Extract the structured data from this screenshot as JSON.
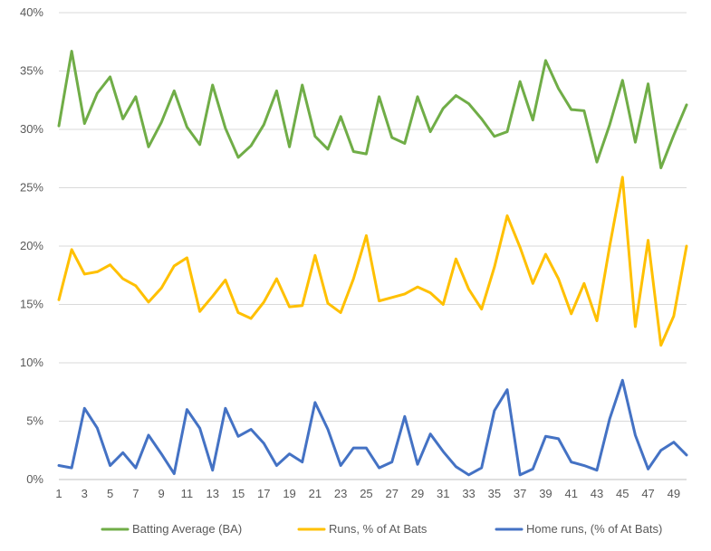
{
  "chart_data": {
    "type": "line",
    "title": "",
    "xlabel": "",
    "ylabel": "",
    "ylim": [
      0,
      0.4
    ],
    "y_ticks": [
      "0%",
      "5%",
      "10%",
      "15%",
      "20%",
      "25%",
      "30%",
      "35%",
      "40%"
    ],
    "x_ticks_shown": [
      1,
      3,
      5,
      7,
      9,
      11,
      13,
      15,
      17,
      19,
      21,
      23,
      25,
      27,
      29,
      31,
      33,
      35,
      37,
      39,
      41,
      43,
      45,
      47,
      49
    ],
    "grid": "horizontal",
    "legend": "bottom",
    "x": [
      1,
      2,
      3,
      4,
      5,
      6,
      7,
      8,
      9,
      10,
      11,
      12,
      13,
      14,
      15,
      16,
      17,
      18,
      19,
      20,
      21,
      22,
      23,
      24,
      25,
      26,
      27,
      28,
      29,
      30,
      31,
      32,
      33,
      34,
      35,
      36,
      37,
      38,
      39,
      40,
      41,
      42,
      43,
      44,
      45,
      46,
      47,
      48,
      49,
      50
    ],
    "series": [
      {
        "name": "Batting Average (BA)",
        "color": "#70AD47",
        "values": [
          0.303,
          0.367,
          0.305,
          0.331,
          0.345,
          0.309,
          0.328,
          0.285,
          0.306,
          0.333,
          0.302,
          0.287,
          0.338,
          0.301,
          0.276,
          0.286,
          0.304,
          0.333,
          0.285,
          0.338,
          0.294,
          0.283,
          0.311,
          0.281,
          0.279,
          0.328,
          0.293,
          0.288,
          0.328,
          0.298,
          0.318,
          0.329,
          0.322,
          0.309,
          0.294,
          0.298,
          0.341,
          0.308,
          0.359,
          0.335,
          0.317,
          0.316,
          0.272,
          0.304,
          0.342,
          0.289,
          0.339,
          0.267,
          0.295,
          0.321
        ]
      },
      {
        "name": "Runs, % of At Bats",
        "color": "#FFC000",
        "values": [
          0.154,
          0.197,
          0.176,
          0.178,
          0.184,
          0.172,
          0.166,
          0.152,
          0.164,
          0.183,
          0.19,
          0.144,
          0.157,
          0.171,
          0.143,
          0.138,
          0.152,
          0.172,
          0.148,
          0.149,
          0.192,
          0.151,
          0.143,
          0.172,
          0.209,
          0.153,
          0.156,
          0.159,
          0.165,
          0.16,
          0.15,
          0.189,
          0.163,
          0.146,
          0.182,
          0.226,
          0.199,
          0.168,
          0.193,
          0.172,
          0.142,
          0.168,
          0.136,
          0.2,
          0.259,
          0.131,
          0.205,
          0.115,
          0.14,
          0.2
        ]
      },
      {
        "name": "Home runs, (% of At Bats)",
        "color": "#4472C4",
        "values": [
          0.012,
          0.01,
          0.061,
          0.044,
          0.012,
          0.023,
          0.01,
          0.038,
          0.022,
          0.005,
          0.06,
          0.044,
          0.008,
          0.061,
          0.037,
          0.043,
          0.031,
          0.012,
          0.022,
          0.015,
          0.066,
          0.043,
          0.012,
          0.027,
          0.027,
          0.01,
          0.015,
          0.054,
          0.013,
          0.039,
          0.024,
          0.011,
          0.004,
          0.01,
          0.059,
          0.077,
          0.004,
          0.009,
          0.037,
          0.035,
          0.015,
          0.012,
          0.008,
          0.052,
          0.085,
          0.038,
          0.009,
          0.025,
          0.032,
          0.021
        ]
      }
    ]
  }
}
